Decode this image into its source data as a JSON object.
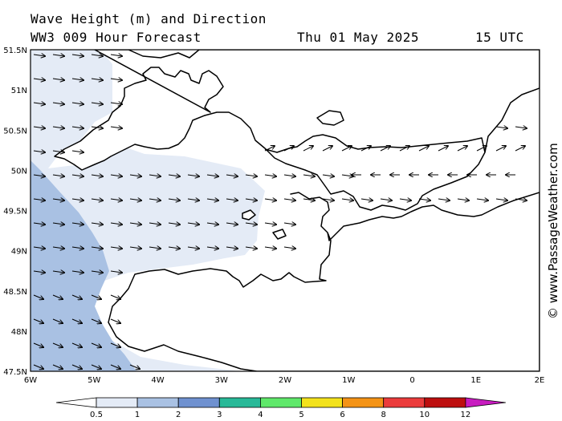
{
  "title": {
    "line1": "Wave Height (m) and Direction",
    "model_line": "WW3 009 Hour Forecast",
    "date": "Thu 01 May 2025",
    "time": "15 UTC"
  },
  "credit": "© www.PassageWeather.com",
  "lat_labels": [
    "51.5N",
    "51N",
    "50.5N",
    "50N",
    "49.5N",
    "49N",
    "48.5N",
    "48N",
    "47.5N"
  ],
  "lon_labels": [
    "6W",
    "5W",
    "4W",
    "3W",
    "2W",
    "1W",
    "0",
    "1E",
    "2E"
  ],
  "legend": {
    "labels": [
      "0.5",
      "1",
      "2",
      "3",
      "4",
      "5",
      "6",
      "8",
      "10",
      "12"
    ],
    "colors": [
      "#e4ebf6",
      "#a9c1e3",
      "#6f91d0",
      "#28b998",
      "#5fe86a",
      "#f3e21c",
      "#f49316",
      "#eb3c3c",
      "#bd0f0f",
      "#c81cc0"
    ],
    "below_color": "#ffffff"
  },
  "colors": {
    "land": "#ffffff",
    "sea_calm": "#ffffff",
    "band_05_1": "#e4ebf6",
    "band_1_2": "#a9c1e3",
    "coast": "#000000"
  }
}
